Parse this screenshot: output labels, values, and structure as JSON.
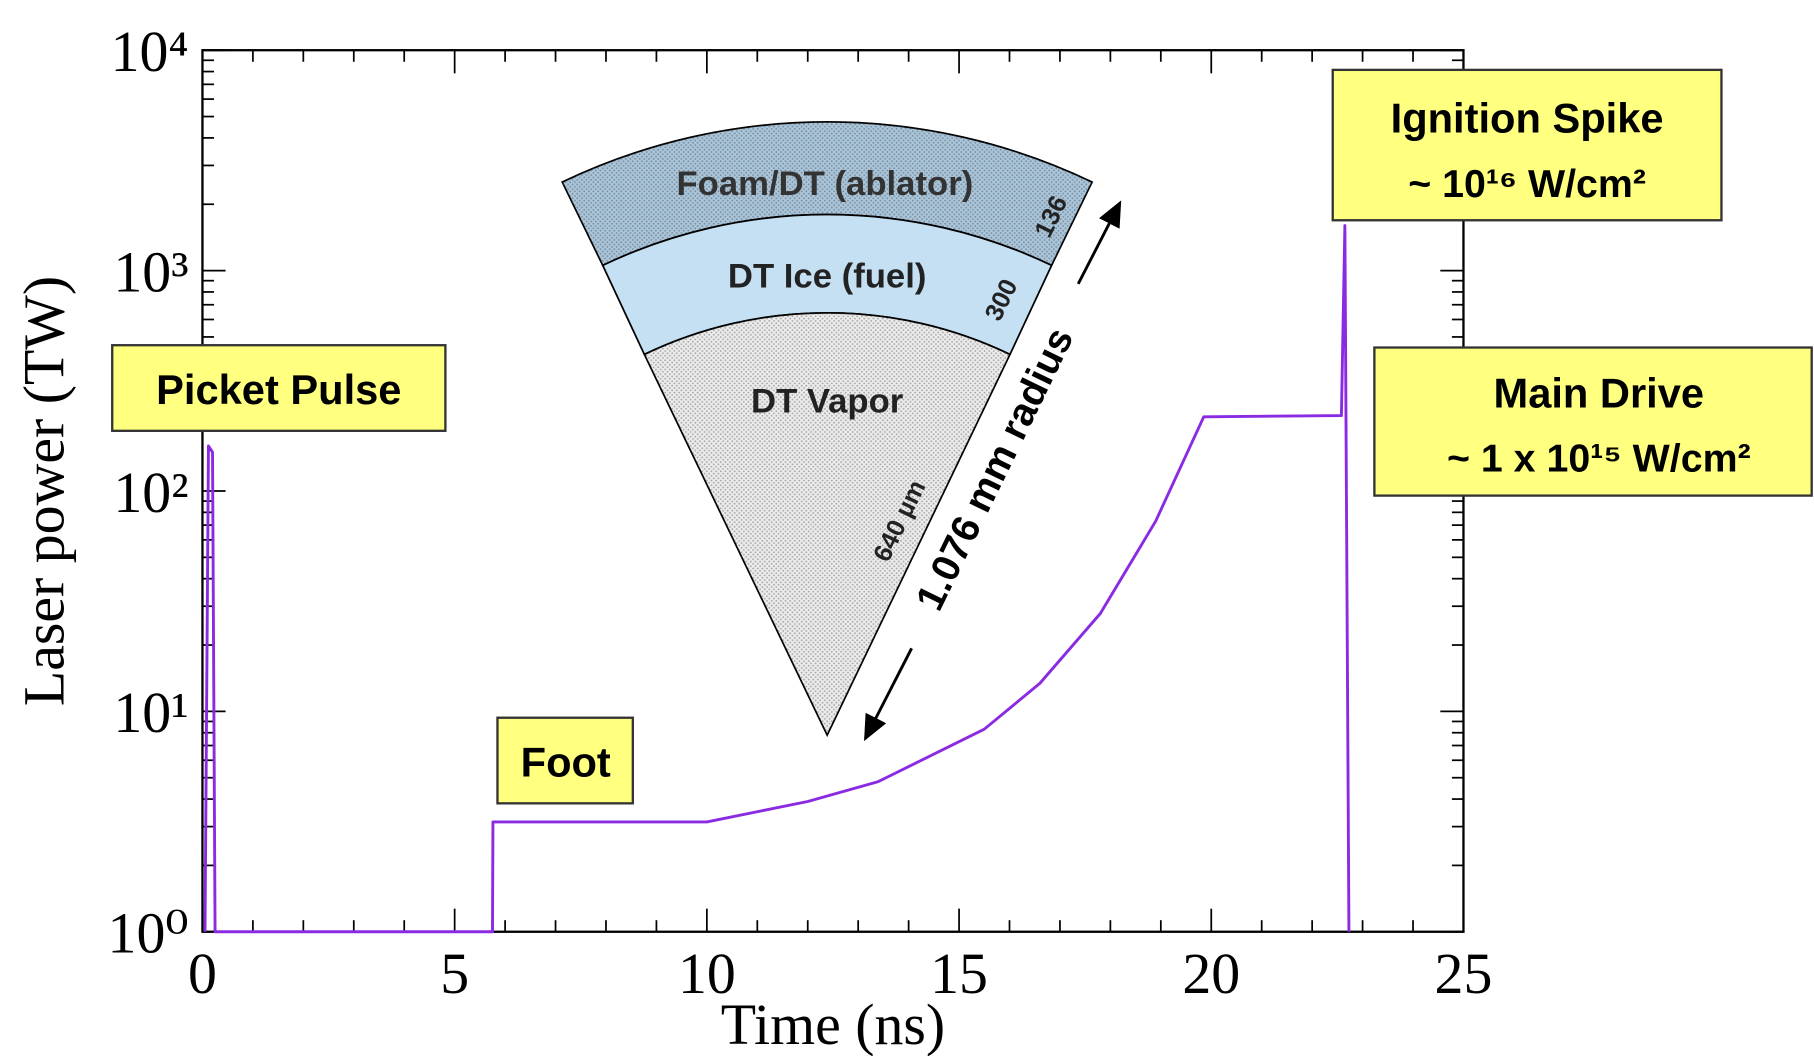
{
  "chart_data": {
    "type": "line",
    "xlabel": "Time (ns)",
    "ylabel": "Laser power (TW)",
    "xlim": [
      0,
      25
    ],
    "xticks": [
      0,
      5,
      10,
      15,
      20,
      25
    ],
    "ylim": [
      1,
      10000
    ],
    "yticks": [
      {
        "value": 1,
        "label": "10⁰"
      },
      {
        "value": 10,
        "label": "10¹"
      },
      {
        "value": 100,
        "label": "10²"
      },
      {
        "value": 1000,
        "label": "10³"
      },
      {
        "value": 10000,
        "label": "10⁴"
      }
    ],
    "log_y": true,
    "minor_ticks": true,
    "grid": false,
    "x": [
      0.05,
      0.12,
      0.2,
      0.25,
      5.75,
      5.76,
      10,
      12,
      13.4,
      15.5,
      16.6,
      17.8,
      18.9,
      19.85,
      22.58,
      22.65,
      22.73
    ],
    "series": [
      {
        "color": "#8a2be2",
        "values": [
          1,
          160,
          150,
          1,
          1,
          3.15,
          3.15,
          3.9,
          4.8,
          8.3,
          13.4,
          27.8,
          73,
          217,
          220,
          1600,
          1
        ]
      }
    ],
    "annotations": [
      {
        "text": [
          "Picket Pulse"
        ]
      },
      {
        "text": [
          "Foot"
        ]
      },
      {
        "text": [
          "Ignition Spike",
          "~ 10¹⁶ W/cm²"
        ]
      },
      {
        "text": [
          "Main Drive",
          "~ 1 x 10¹⁵ W/cm²"
        ]
      }
    ],
    "inset": {
      "layers": [
        "Foam/DT (ablator)",
        "DT Ice (fuel)",
        "DT Vapor"
      ],
      "thicknesses": [
        "136",
        "300",
        "640 µm"
      ],
      "radius": "1.076 mm radius"
    }
  }
}
